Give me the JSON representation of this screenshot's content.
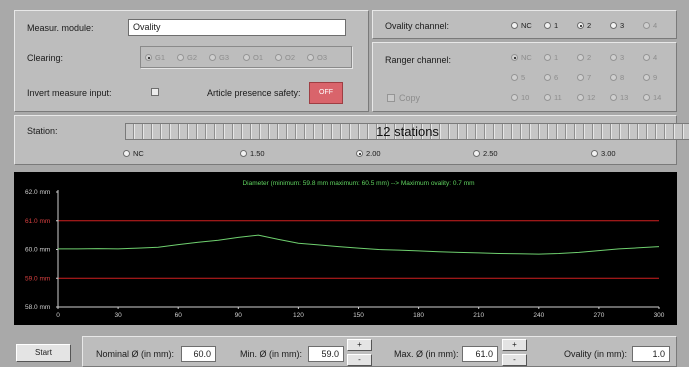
{
  "module": {
    "label": "Measur. module:",
    "value": "Ovality"
  },
  "clearing": {
    "label": "Clearing:",
    "options": [
      "G1",
      "G2",
      "G3",
      "O1",
      "O2",
      "O3"
    ],
    "selected": "G1"
  },
  "invert": {
    "label": "Invert measure input:"
  },
  "presence": {
    "label": "Article presence safety:",
    "button": "OFF"
  },
  "ovality_channel": {
    "label": "Ovality channel:",
    "options": [
      "NC",
      "1",
      "2",
      "3",
      "4"
    ],
    "selected": "2"
  },
  "ranger_channel": {
    "label": "Ranger channel:",
    "rows": [
      [
        "NC",
        "1",
        "2",
        "3",
        "4"
      ],
      [
        "5",
        "6",
        "7",
        "8",
        "9"
      ],
      [
        "10",
        "11",
        "12",
        "13",
        "14"
      ]
    ],
    "selected": "NC",
    "copy_label": "Copy"
  },
  "station": {
    "label": "Station:",
    "slider_text": "12 stations",
    "options": [
      "NC",
      "1.50",
      "2.00",
      "2.50",
      "3.00"
    ],
    "selected": "2.00"
  },
  "chart_data": {
    "type": "line",
    "title": "Diameter (minimum: 59.8 mm  maximum: 60.5 mm)  -->  Maximum ovality: 0.7 mm",
    "xlim": [
      0,
      300
    ],
    "ylim": [
      58.0,
      62.0
    ],
    "xticks": [
      "0",
      "30",
      "60",
      "90",
      "120",
      "150",
      "180",
      "210",
      "240",
      "270",
      "300"
    ],
    "yticks": [
      {
        "value": 62.0,
        "label": "62.0 mm"
      },
      {
        "value": 61.0,
        "label": "61.0 mm"
      },
      {
        "value": 60.0,
        "label": "60.0 mm"
      },
      {
        "value": 59.0,
        "label": "59.0 mm"
      },
      {
        "value": 58.0,
        "label": "58.0 mm"
      }
    ],
    "limit_lines": [
      61.0,
      59.0
    ],
    "colors": {
      "trace": "#6fd06f",
      "limit": "#d02020",
      "title": "#5fd35f",
      "axis": "#cfcfcf",
      "limit_label": "#d84040"
    },
    "series": [
      {
        "x": [
          0,
          10,
          20,
          30,
          40,
          50,
          60,
          70,
          80,
          90,
          100,
          110,
          120,
          130,
          140,
          150,
          160,
          170,
          180,
          190,
          200,
          210,
          220,
          230,
          240,
          250,
          260,
          270,
          280,
          290,
          300
        ],
        "y": [
          60.02,
          60.02,
          60.03,
          60.02,
          60.05,
          60.08,
          60.17,
          60.25,
          60.32,
          60.42,
          60.5,
          60.35,
          60.22,
          60.16,
          60.1,
          60.05,
          60.0,
          59.98,
          59.95,
          59.92,
          59.9,
          59.88,
          59.86,
          59.85,
          59.84,
          59.86,
          59.9,
          59.96,
          60.02,
          60.06,
          60.1
        ]
      }
    ]
  },
  "bottom": {
    "start_label": "Start",
    "nominal": {
      "label": "Nominal Ø (in mm):",
      "value": "60.0"
    },
    "min": {
      "label": "Min. Ø (in mm):",
      "value": "59.0"
    },
    "max": {
      "label": "Max. Ø (in mm):",
      "value": "61.0"
    },
    "ovality": {
      "label": "Ovality (in mm):",
      "value": "1.0"
    },
    "plus": "+",
    "minus": "-"
  }
}
